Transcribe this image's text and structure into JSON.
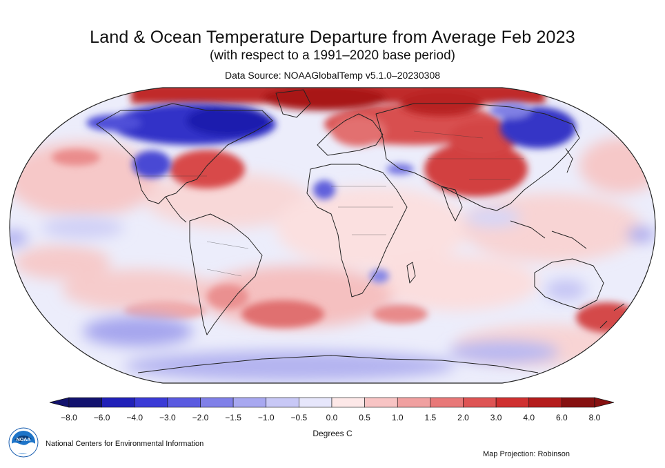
{
  "title": "Land & Ocean Temperature Departure from Average Feb 2023",
  "subtitle": "(with respect to a 1991–2020 base period)",
  "data_source": "Data Source: NOAAGlobalTemp v5.1.0–20230308",
  "legend": {
    "ticks": [
      "−8.0",
      "−6.0",
      "−4.0",
      "−3.0",
      "−2.0",
      "−1.5",
      "−1.0",
      "−0.5",
      "0.0",
      "0.5",
      "1.0",
      "1.5",
      "2.0",
      "3.0",
      "4.0",
      "6.0",
      "8.0"
    ],
    "units": "Degrees C",
    "colors": [
      "#12126e",
      "#2020b8",
      "#3a3ad6",
      "#5a5ae0",
      "#8080e8",
      "#a8a8f0",
      "#c8c8f6",
      "#e6e6fb",
      "#fde8e8",
      "#f8c4c4",
      "#f0a0a0",
      "#e87878",
      "#de5454",
      "#cf3030",
      "#b41c1c",
      "#861010"
    ]
  },
  "agency": "National Centers for Environmental Information",
  "logo_text": "NOAA",
  "projection": "Map Projection: Robinson",
  "colors": {
    "ocean_base": "#e9ebfb",
    "land_outline": "#222222"
  }
}
